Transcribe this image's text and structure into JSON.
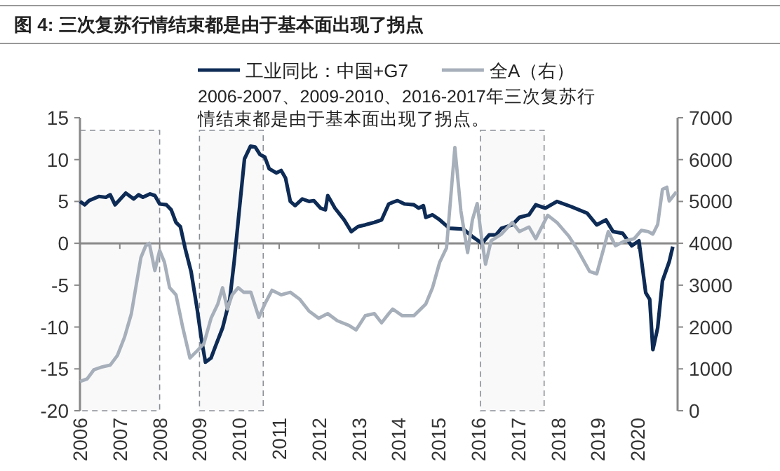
{
  "chart_data": {
    "type": "line",
    "title": "图 4:  三次复苏行情结束都是由于基本面出现了拐点",
    "annotations": [
      "2006-2007、2009-2010、2016-2017年三次复苏行情结束都是由于基本面出现了拐点。"
    ],
    "legend": "top",
    "line_style": "solid",
    "xlim": [
      2006,
      2021
    ],
    "xticks": [
      2006,
      2007,
      2008,
      2009,
      2010,
      2011,
      2012,
      2013,
      2014,
      2015,
      2016,
      2017,
      2018,
      2019,
      2020
    ],
    "ylim": [
      -20,
      15
    ],
    "yticks": [
      -20,
      -15,
      -10,
      -5,
      0,
      5,
      10,
      15
    ],
    "y2lim": [
      0,
      7000
    ],
    "y2ticks": [
      0,
      1000,
      2000,
      3000,
      4000,
      5000,
      6000,
      7000
    ],
    "bands": [
      {
        "axis": "x",
        "from": 2006,
        "to": 2008,
        "color": "#8a8f96"
      },
      {
        "axis": "x",
        "from": 2009,
        "to": 2010.6,
        "color": "#8a8f96"
      },
      {
        "axis": "x",
        "from": 2016.05,
        "to": 2017.65,
        "color": "#8a8f96"
      }
    ],
    "series": [
      {
        "name": "工业同比：中国+G7",
        "color": "#0d2b55",
        "x": [
          2006.0,
          2006.12,
          2006.23,
          2006.47,
          2006.65,
          2006.76,
          2006.88,
          2007.15,
          2007.35,
          2007.47,
          2007.58,
          2007.76,
          2007.88,
          2008.0,
          2008.17,
          2008.29,
          2008.41,
          2008.52,
          2008.64,
          2008.79,
          2008.94,
          2009.05,
          2009.15,
          2009.29,
          2009.4,
          2009.58,
          2009.76,
          2009.87,
          2010.01,
          2010.13,
          2010.28,
          2010.4,
          2010.52,
          2010.64,
          2010.75,
          2010.93,
          2011.05,
          2011.16,
          2011.28,
          2011.4,
          2011.58,
          2011.75,
          2011.87,
          2012.04,
          2012.16,
          2012.22,
          2012.4,
          2012.63,
          2012.81,
          2012.98,
          2013.16,
          2013.39,
          2013.57,
          2013.75,
          2013.85,
          2013.97,
          2014.15,
          2014.38,
          2014.5,
          2014.62,
          2014.68,
          2014.85,
          2015.03,
          2015.27,
          2015.62,
          2015.85,
          2016.09,
          2016.27,
          2016.44,
          2016.58,
          2016.85,
          2017.03,
          2017.27,
          2017.44,
          2017.68,
          2017.97,
          2018.32,
          2018.73,
          2018.97,
          2019.2,
          2019.38,
          2019.62,
          2019.85,
          2020.03,
          2020.2,
          2020.3,
          2020.38,
          2020.5,
          2020.62,
          2020.79,
          2020.88
        ],
        "values": [
          5.0,
          4.6,
          5.1,
          5.6,
          5.5,
          5.8,
          4.6,
          6.0,
          5.3,
          5.8,
          5.5,
          5.9,
          5.7,
          4.7,
          4.6,
          4.0,
          2.5,
          2.0,
          -0.6,
          -3.4,
          -7.8,
          -11.5,
          -14.2,
          -13.7,
          -12.3,
          -10.1,
          -6.7,
          -2.2,
          4.5,
          10.1,
          11.6,
          11.5,
          10.6,
          10.3,
          8.9,
          8.4,
          8.7,
          7.8,
          5.0,
          4.5,
          5.3,
          5.0,
          5.1,
          4.2,
          4.0,
          5.7,
          4.2,
          2.8,
          1.4,
          2.0,
          2.2,
          2.5,
          2.8,
          4.7,
          4.9,
          5.1,
          4.7,
          4.6,
          4.2,
          4.5,
          3.1,
          3.4,
          2.8,
          1.8,
          1.7,
          0.8,
          0.0,
          1.0,
          1.0,
          1.8,
          2.2,
          3.1,
          3.4,
          4.6,
          4.2,
          5.0,
          4.4,
          3.6,
          2.2,
          2.8,
          1.4,
          1.2,
          -0.3,
          0.3,
          -5.9,
          -6.7,
          -12.7,
          -10.1,
          -4.5,
          -2.2,
          -0.4
        ]
      },
      {
        "name": "全A（右）",
        "color": "#a6afba",
        "axis": "y2",
        "x": [
          2006.0,
          2006.18,
          2006.35,
          2006.53,
          2006.76,
          2006.94,
          2007.12,
          2007.29,
          2007.41,
          2007.53,
          2007.65,
          2007.74,
          2007.88,
          2008.0,
          2008.12,
          2008.25,
          2008.41,
          2008.58,
          2008.76,
          2008.94,
          2009.11,
          2009.29,
          2009.46,
          2009.58,
          2009.7,
          2009.82,
          2009.97,
          2010.11,
          2010.29,
          2010.49,
          2010.64,
          2010.82,
          2011.05,
          2011.28,
          2011.52,
          2011.75,
          2011.99,
          2012.22,
          2012.46,
          2012.75,
          2012.93,
          2013.16,
          2013.39,
          2013.57,
          2013.75,
          2013.85,
          2014.09,
          2014.38,
          2014.68,
          2014.85,
          2015.03,
          2015.2,
          2015.41,
          2015.56,
          2015.73,
          2015.85,
          2015.97,
          2016.09,
          2016.18,
          2016.32,
          2016.58,
          2016.85,
          2017.03,
          2017.27,
          2017.44,
          2017.74,
          2017.97,
          2018.27,
          2018.5,
          2018.79,
          2018.97,
          2019.15,
          2019.26,
          2019.44,
          2019.68,
          2019.91,
          2020.09,
          2020.26,
          2020.38,
          2020.5,
          2020.62,
          2020.73,
          2020.79,
          2020.97
        ],
        "values": [
          700,
          760,
          980,
          1040,
          1090,
          1320,
          1760,
          2320,
          2990,
          3660,
          3940,
          4000,
          3350,
          3830,
          3550,
          2940,
          2770,
          1990,
          1260,
          1430,
          1600,
          2210,
          2550,
          2940,
          2430,
          2770,
          2940,
          2830,
          2830,
          2230,
          2550,
          2880,
          2770,
          2830,
          2660,
          2380,
          2210,
          2320,
          2150,
          2040,
          1930,
          2270,
          2320,
          2100,
          2320,
          2430,
          2270,
          2270,
          2550,
          2940,
          3550,
          3890,
          6290,
          4780,
          3780,
          4560,
          4950,
          4060,
          3500,
          4060,
          4220,
          4500,
          4280,
          4390,
          4110,
          4670,
          4500,
          4170,
          3830,
          3330,
          3270,
          3890,
          4280,
          3940,
          4060,
          4110,
          4310,
          4280,
          4220,
          4450,
          5290,
          5340,
          5010,
          5230
        ]
      }
    ]
  }
}
